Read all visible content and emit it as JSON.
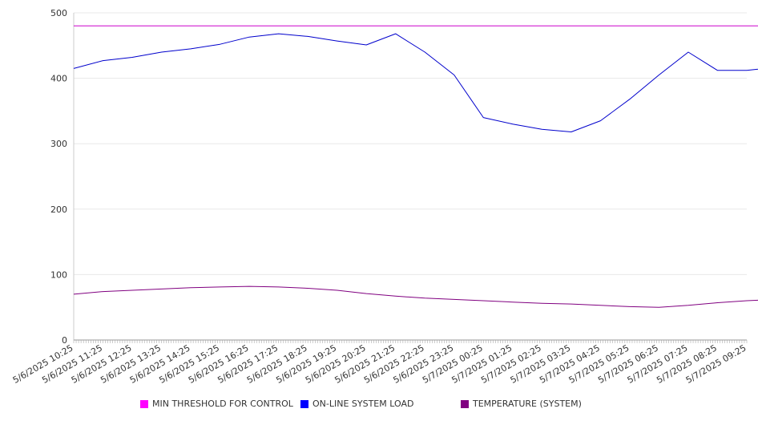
{
  "chart_data": {
    "type": "line",
    "title": "",
    "xlabel": "",
    "ylabel": "",
    "ylim": [
      0,
      500
    ],
    "yticks": [
      0,
      100,
      200,
      300,
      400,
      500
    ],
    "grid": true,
    "legend_position": "bottom",
    "x_ticks": [
      "5/6/2025 10:25",
      "5/6/2025 11:25",
      "5/6/2025 12:25",
      "5/6/2025 13:25",
      "5/6/2025 14:25",
      "5/6/2025 15:25",
      "5/6/2025 16:25",
      "5/6/2025 17:25",
      "5/6/2025 18:25",
      "5/6/2025 19:25",
      "5/6/2025 20:25",
      "5/6/2025 21:25",
      "5/6/2025 22:25",
      "5/6/2025 23:25",
      "5/7/2025 00:25",
      "5/7/2025 01:25",
      "5/7/2025 02:25",
      "5/7/2025 03:25",
      "5/7/2025 04:25",
      "5/7/2025 05:25",
      "5/7/2025 06:25",
      "5/7/2025 07:25",
      "5/7/2025 08:25",
      "5/7/2025 09:25"
    ],
    "series": [
      {
        "name": "MIN THRESHOLD FOR CONTROL",
        "color": "#cc00cc",
        "swatch_color": "#ff00ff",
        "values": [
          480,
          480,
          480,
          480,
          480,
          480,
          480,
          480,
          480,
          480,
          480,
          480,
          480,
          480,
          480,
          480,
          480,
          480,
          480,
          480,
          480,
          480,
          480,
          480,
          480
        ]
      },
      {
        "name": "ON-LINE SYSTEM LOAD",
        "color": "#0000cc",
        "swatch_color": "#0000ff",
        "values": [
          415,
          427,
          432,
          440,
          445,
          452,
          463,
          468,
          464,
          457,
          451,
          468,
          440,
          405,
          340,
          330,
          322,
          318,
          335,
          368,
          405,
          440,
          412,
          412,
          417
        ]
      },
      {
        "name": "TEMPERATURE (SYSTEM)",
        "color": "#800080",
        "swatch_color": "#800080",
        "values": [
          70,
          74,
          76,
          78,
          80,
          81,
          82,
          81,
          79,
          76,
          71,
          67,
          64,
          62,
          60,
          58,
          56,
          55,
          53,
          51,
          50,
          53,
          57,
          60,
          62
        ]
      }
    ]
  }
}
